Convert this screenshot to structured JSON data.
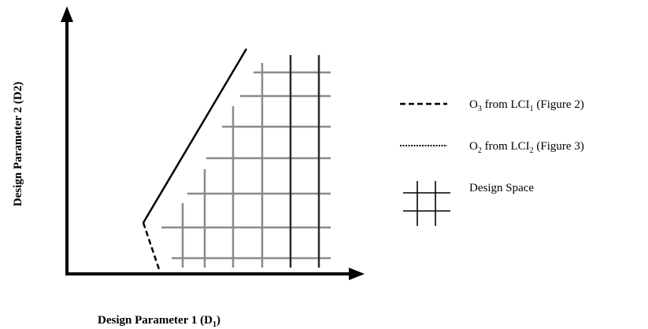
{
  "diagram": {
    "x_axis_label": "Design Parameter 1 (D",
    "x_axis_label_sub": "1",
    "x_axis_label_end": ")",
    "y_axis_label": "Design Parameter 2 (D2)",
    "legend": [
      {
        "pre": "O",
        "sub": "3",
        "mid": " from LCI",
        "sub2": "1",
        "post": " (Figure 2)",
        "line_style": "dashed"
      },
      {
        "pre": "O",
        "sub": "2",
        "mid": " from LCI",
        "sub2": "2",
        "post": " (Figure 3)",
        "line_style": "dotted"
      },
      {
        "pre": "Design Space",
        "sub": "",
        "mid": "",
        "sub2": "",
        "post": "",
        "line_style": "grid-icon"
      }
    ]
  }
}
